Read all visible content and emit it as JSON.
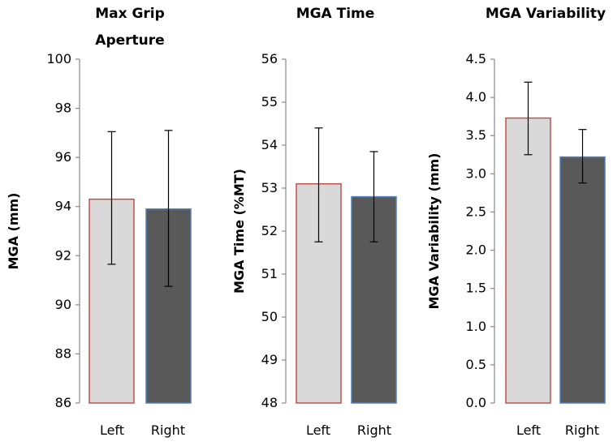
{
  "chart_data": [
    {
      "type": "bar",
      "title_lines": [
        "Max Grip",
        "Aperture"
      ],
      "ylabel": "MGA (mm)",
      "categories": [
        "Left",
        "Right"
      ],
      "values": [
        94.3,
        93.9
      ],
      "error_low": [
        91.65,
        90.75
      ],
      "error_high": [
        97.05,
        97.1
      ],
      "ylim": [
        86,
        100
      ],
      "yticks": [
        "86",
        "88",
        "90",
        "92",
        "94",
        "96",
        "98",
        "100"
      ],
      "ytick_values": [
        86,
        88,
        90,
        92,
        94,
        96,
        98,
        100
      ],
      "colors": {
        "fill": [
          "#d9d9d9",
          "#595959"
        ],
        "edge": [
          "#c0504d",
          "#4f81bd"
        ]
      },
      "grid": false,
      "legend": "none"
    },
    {
      "type": "bar",
      "title_lines": [
        "MGA Time"
      ],
      "ylabel": "MGA Time (%MT)",
      "categories": [
        "Left",
        "Right"
      ],
      "values": [
        53.1,
        52.8
      ],
      "error_low": [
        51.75,
        51.75
      ],
      "error_high": [
        54.4,
        53.85
      ],
      "ylim": [
        48,
        56
      ],
      "yticks": [
        "48",
        "49",
        "50",
        "51",
        "52",
        "53",
        "54",
        "55",
        "56"
      ],
      "ytick_values": [
        48,
        49,
        50,
        51,
        52,
        53,
        54,
        55,
        56
      ],
      "colors": {
        "fill": [
          "#d9d9d9",
          "#595959"
        ],
        "edge": [
          "#c0504d",
          "#4f81bd"
        ]
      },
      "grid": false,
      "legend": "none"
    },
    {
      "type": "bar",
      "title_lines": [
        "MGA Variability"
      ],
      "ylabel": "MGA Variability (mm)",
      "categories": [
        "Left",
        "Right"
      ],
      "values": [
        3.73,
        3.22
      ],
      "error_low": [
        3.25,
        2.88
      ],
      "error_high": [
        4.2,
        3.58
      ],
      "ylim": [
        0,
        4.5
      ],
      "yticks": [
        "0.0",
        "0.5",
        "1.0",
        "1.5",
        "2.0",
        "2.5",
        "3.0",
        "3.5",
        "4.0",
        "4.5"
      ],
      "ytick_values": [
        0,
        0.5,
        1,
        1.5,
        2,
        2.5,
        3,
        3.5,
        4,
        4.5
      ],
      "colors": {
        "fill": [
          "#d9d9d9",
          "#595959"
        ],
        "edge": [
          "#c0504d",
          "#4f81bd"
        ]
      },
      "grid": false,
      "legend": "none"
    }
  ]
}
